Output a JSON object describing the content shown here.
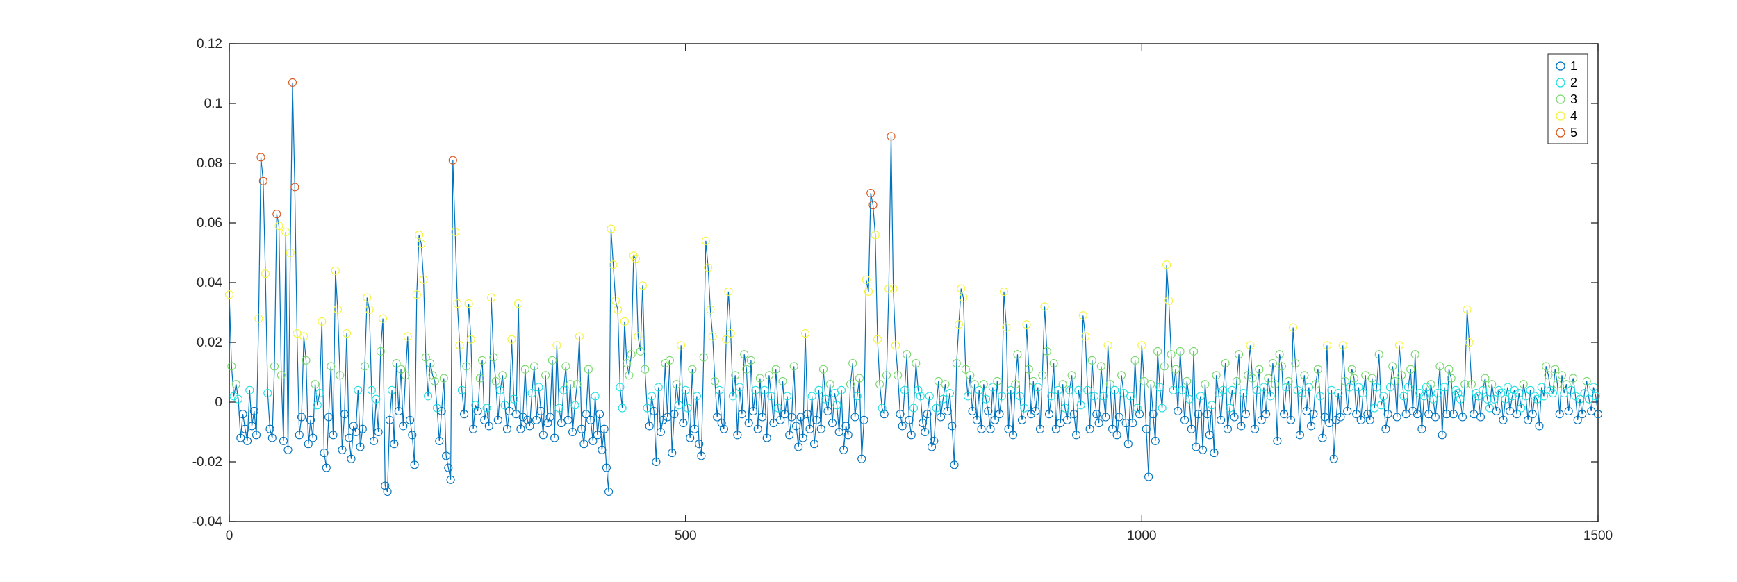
{
  "chart_data": {
    "type": "line",
    "title": "",
    "xlabel": "",
    "ylabel": "",
    "xlim": [
      0,
      1500
    ],
    "ylim": [
      -0.04,
      0.12
    ],
    "xticks": [
      "0",
      "500",
      "1000",
      "1500"
    ],
    "yticks": [
      "-0.04",
      "-0.02",
      "0",
      "0.02",
      "0.04",
      "0.06",
      "0.08",
      "0.1",
      "0.12"
    ],
    "grid": false,
    "legend_position": "top-right",
    "line_color": "#0072BD",
    "series": [
      {
        "name": "1",
        "color": "#0072BD"
      },
      {
        "name": "2",
        "color": "#1EE0E0"
      },
      {
        "name": "3",
        "color": "#77D86A"
      },
      {
        "name": "4",
        "color": "#F3F33A"
      },
      {
        "name": "5",
        "color": "#D95319"
      }
    ],
    "values": [
      0.036,
      0.012,
      0.002,
      0.006,
      0.001,
      -0.012,
      -0.004,
      -0.009,
      -0.013,
      0.004,
      -0.008,
      -0.003,
      -0.011,
      0.028,
      0.082,
      0.074,
      0.043,
      0.003,
      -0.009,
      -0.012,
      0.012,
      0.063,
      0.059,
      0.009,
      -0.013,
      0.057,
      -0.016,
      0.05,
      0.107,
      0.072,
      0.023,
      -0.011,
      -0.005,
      0.022,
      0.014,
      -0.014,
      -0.006,
      -0.012,
      0.006,
      -0.001,
      0.003,
      0.027,
      -0.017,
      -0.022,
      -0.005,
      0.012,
      -0.011,
      0.044,
      0.031,
      0.009,
      -0.016,
      -0.004,
      0.023,
      -0.012,
      -0.019,
      -0.008,
      -0.01,
      0.004,
      -0.015,
      -0.009,
      0.012,
      0.035,
      0.031,
      0.004,
      -0.013,
      0.001,
      -0.01,
      0.017,
      0.028,
      -0.028,
      -0.03,
      -0.006,
      0.004,
      -0.014,
      0.013,
      -0.003,
      0.011,
      -0.008,
      0.009,
      0.022,
      -0.006,
      -0.011,
      -0.021,
      0.036,
      0.056,
      0.053,
      0.041,
      0.015,
      0.002,
      0.013,
      0.009,
      0.007,
      -0.002,
      -0.013,
      -0.003,
      0.008,
      -0.018,
      -0.022,
      -0.026,
      0.081,
      0.057,
      0.033,
      0.019,
      0.004,
      -0.004,
      0.012,
      0.033,
      0.021,
      -0.009,
      -0.001,
      -0.003,
      0.008,
      0.014,
      -0.006,
      -0.002,
      -0.008,
      0.035,
      0.015,
      0.007,
      -0.006,
      0.004,
      0.009,
      -0.001,
      -0.009,
      -0.003,
      0.021,
      0.001,
      -0.004,
      0.033,
      -0.009,
      -0.005,
      0.011,
      -0.006,
      -0.008,
      0.003,
      0.012,
      -0.006,
      0.005,
      -0.003,
      -0.011,
      0.009,
      -0.007,
      -0.005,
      0.014,
      -0.012,
      0.019,
      -0.002,
      -0.007,
      0.004,
      0.012,
      -0.006,
      0.006,
      -0.01,
      -0.001,
      0.006,
      0.022,
      -0.009,
      -0.014,
      -0.004,
      0.011,
      -0.006,
      -0.013,
      0.002,
      -0.011,
      -0.004,
      -0.016,
      -0.009,
      -0.022,
      -0.03,
      0.058,
      0.046,
      0.034,
      0.031,
      0.005,
      -0.002,
      0.027,
      0.013,
      0.009,
      0.016,
      0.049,
      0.048,
      0.022,
      0.017,
      0.039,
      0.011,
      -0.002,
      -0.008,
      0.002,
      -0.003,
      -0.02,
      0.005,
      -0.01,
      -0.006,
      0.013,
      -0.005,
      0.014,
      -0.017,
      -0.004,
      0.006,
      -0.001,
      0.019,
      -0.007,
      0.004,
      -0.002,
      -0.012,
      0.011,
      -0.009,
      0.002,
      -0.014,
      -0.018,
      0.015,
      0.054,
      0.045,
      0.031,
      0.022,
      0.007,
      -0.005,
      0.004,
      -0.007,
      -0.009,
      0.021,
      0.037,
      0.023,
      0.002,
      0.009,
      -0.011,
      0.005,
      -0.004,
      0.016,
      0.011,
      -0.007,
      0.014,
      -0.003,
      0.004,
      -0.009,
      0.008,
      -0.005,
      0.004,
      -0.012,
      0.009,
      0.002,
      -0.007,
      0.011,
      -0.002,
      -0.006,
      0.007,
      -0.004,
      0.002,
      -0.011,
      -0.005,
      0.012,
      -0.008,
      -0.015,
      -0.005,
      -0.012,
      0.023,
      -0.004,
      -0.009,
      0.002,
      -0.014,
      -0.006,
      0.004,
      -0.009,
      0.011,
      0.001,
      -0.003,
      0.006,
      -0.007,
      0.003,
      -0.001,
      -0.01,
      0.004,
      -0.016,
      -0.008,
      -0.011,
      0.006,
      0.013,
      -0.005,
      0.002,
      0.008,
      -0.019,
      -0.006,
      0.041,
      0.037,
      0.07,
      0.066,
      0.056,
      0.021,
      0.006,
      -0.002,
      -0.004,
      0.009,
      0.038,
      0.089,
      0.038,
      0.019,
      0.009,
      -0.004,
      -0.008,
      0.004,
      0.016,
      -0.006,
      -0.011,
      -0.002,
      0.013,
      0.004,
      0.002,
      -0.007,
      -0.01,
      -0.004,
      0.002,
      -0.015,
      -0.013,
      -0.002,
      0.007,
      -0.005,
      0.001,
      0.006,
      -0.003,
      0.003,
      -0.008,
      -0.021,
      0.013,
      0.026,
      0.038,
      0.035,
      0.011,
      0.002,
      0.009,
      -0.003,
      0.006,
      -0.006,
      0.004,
      -0.009,
      0.006,
      0.001,
      -0.003,
      -0.009,
      0.005,
      -0.006,
      0.007,
      -0.004,
      0.002,
      0.037,
      0.025,
      -0.009,
      0.004,
      -0.011,
      0.006,
      0.016,
      0.002,
      -0.006,
      -0.002,
      0.026,
      0.011,
      -0.004,
      0.007,
      -0.003,
      0.005,
      -0.009,
      0.009,
      0.032,
      0.017,
      -0.004,
      0.002,
      0.013,
      -0.009,
      0.004,
      -0.007,
      0.006,
      -0.002,
      -0.006,
      0.004,
      0.009,
      -0.004,
      -0.011,
      0.004,
      -0.001,
      0.029,
      0.022,
      0.004,
      -0.009,
      0.014,
      0.002,
      -0.004,
      -0.007,
      0.012,
      0.002,
      -0.005,
      0.019,
      0.006,
      -0.009,
      0.004,
      -0.011,
      -0.005,
      0.009,
      0.003,
      -0.007,
      -0.014,
      0.002,
      -0.007,
      0.014,
      -0.002,
      -0.004,
      0.019,
      0.007,
      -0.009,
      -0.025,
      0.006,
      -0.004,
      -0.013,
      0.017,
      0.005,
      -0.002,
      0.012,
      0.046,
      0.034,
      0.016,
      0.004,
      0.011,
      -0.003,
      0.017,
      0.004,
      -0.006,
      0.007,
      0.001,
      -0.009,
      0.017,
      -0.015,
      -0.004,
      0.002,
      -0.016,
      0.006,
      -0.004,
      -0.011,
      -0.001,
      -0.017,
      0.009,
      0.003,
      -0.006,
      0.004,
      0.013,
      -0.009,
      -0.002,
      0.004,
      -0.005,
      0.007,
      0.016,
      -0.008,
      0.003,
      -0.004,
      0.009,
      0.019,
      0.008,
      -0.009,
      0.004,
      0.011,
      -0.006,
      0.005,
      -0.004,
      0.008,
      0.002,
      0.013,
      0.006,
      -0.013,
      0.016,
      0.012,
      -0.004,
      0.005,
      0.007,
      -0.006,
      0.025,
      0.013,
      0.004,
      -0.011,
      0.003,
      0.009,
      -0.003,
      0.005,
      -0.008,
      -0.004,
      0.006,
      0.011,
      0.002,
      -0.012,
      -0.005,
      0.019,
      -0.007,
      0.004,
      -0.019,
      -0.006,
      0.003,
      -0.005,
      0.019,
      0.007,
      -0.003,
      0.005,
      0.011,
      0.008,
      -0.004,
      0.005,
      -0.006,
      0.003,
      0.009,
      -0.004,
      -0.006,
      0.008,
      -0.002,
      0.005,
      0.016,
      -0.001,
      0.002,
      -0.009,
      -0.004,
      0.005,
      0.012,
      0.007,
      -0.005,
      0.019,
      0.009,
      0.002,
      -0.004,
      0.005,
      0.011,
      -0.003,
      0.016,
      -0.004,
      0.003,
      -0.009,
      0.002,
      0.005,
      -0.004,
      0.006,
      0.001,
      -0.005,
      0.003,
      0.012,
      -0.011,
      0.005,
      -0.004,
      0.011,
      0.008,
      -0.004,
      0.004,
      0.003,
      0.001,
      -0.005,
      0.006,
      0.031,
      0.02,
      0.006,
      -0.004,
      0.003,
      0.002,
      -0.005,
      0.004,
      0.008,
      0.001,
      -0.002,
      0.006,
      0.001,
      -0.003,
      0.004,
      0.003,
      -0.006,
      0.001,
      0.005,
      -0.003,
      0.002,
      0.004,
      -0.004,
      0.003,
      -0.002,
      0.006,
      0.002,
      -0.006,
      0.004,
      -0.004,
      0.002,
      0.001,
      -0.008,
      0.005,
      0.002,
      0.012,
      0.009,
      0.004,
      0.003,
      0.011,
      0.006,
      -0.004,
      0.009,
      0.003,
      0.006,
      -0.003,
      0.004,
      0.008,
      0.002,
      -0.006,
      0.001,
      -0.004,
      0.003,
      0.007,
      0.001,
      -0.003,
      0.005,
      0.002,
      -0.004
    ]
  },
  "legend": {
    "items": [
      {
        "label": "1"
      },
      {
        "label": "2"
      },
      {
        "label": "3"
      },
      {
        "label": "4"
      },
      {
        "label": "5"
      }
    ]
  }
}
